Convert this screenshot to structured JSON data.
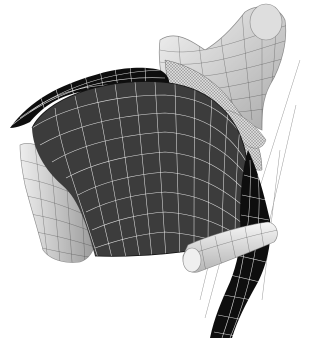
{
  "image": {
    "kind": "3D wireframe mesh render",
    "background_color": "#ffffff",
    "colors": {
      "dark_mesh": "#3c3c3c",
      "black_mesh": "#0e0e0e",
      "light_mesh": "#cdcdcd",
      "pale_mesh": "#e6e6e6",
      "wire_line": "#ffffff"
    },
    "parts": [
      "dark-dome-mesh",
      "black-tongue-mesh",
      "upper-right-light-mesh",
      "left-light-lobe-mesh",
      "right-lower-black-mesh",
      "lower-light-tube-mesh",
      "fine-hatched-mesh",
      "thin-guide-lines"
    ]
  }
}
